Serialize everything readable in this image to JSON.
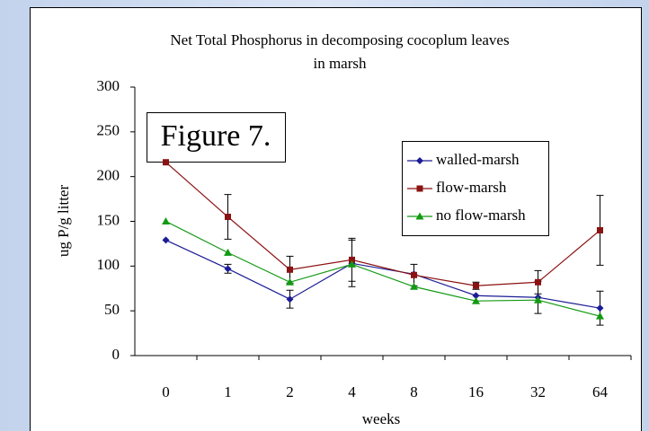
{
  "chart_data": {
    "type": "line",
    "title": [
      "Net Total Phosphorus in decomposing cocoplum leaves",
      "in marsh"
    ],
    "annotation": "Figure 7.",
    "x_label": "weeks",
    "y_label": "ug P/g litter",
    "categories": [
      "0",
      "1",
      "2",
      "4",
      "8",
      "16",
      "32",
      "64"
    ],
    "ylim": [
      0,
      300
    ],
    "yticks": [
      0,
      50,
      100,
      150,
      200,
      250,
      300
    ],
    "series": [
      {
        "name": "walled-marsh",
        "color": "#1c1c96",
        "marker": "diamond",
        "values": [
          129,
          97,
          63,
          103,
          91,
          67,
          65,
          53
        ],
        "errors": [
          null,
          5,
          10,
          26,
          null,
          null,
          18,
          19
        ]
      },
      {
        "name": "flow-marsh",
        "color": "#8b1212",
        "marker": "square",
        "values": [
          216,
          155,
          96,
          107,
          90,
          78,
          82,
          140
        ],
        "errors": [
          null,
          25,
          15,
          24,
          12,
          4,
          13,
          39
        ]
      },
      {
        "name": "no flow-marsh",
        "color": "#129a12",
        "marker": "triangle",
        "values": [
          150,
          115,
          82,
          102,
          77,
          61,
          62,
          44
        ],
        "errors": [
          null,
          null,
          null,
          null,
          null,
          null,
          null,
          null
        ]
      }
    ]
  }
}
